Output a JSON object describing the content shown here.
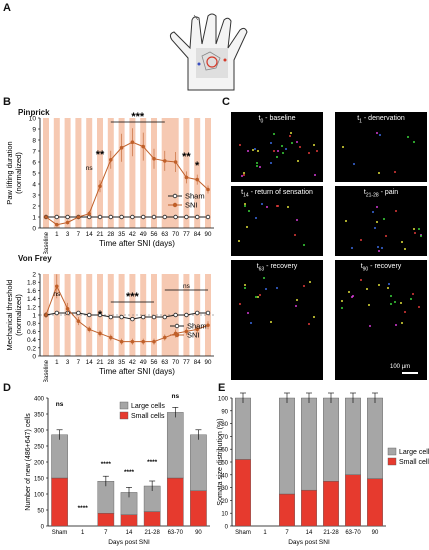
{
  "panels": {
    "A": "A",
    "B": "B",
    "C": "C",
    "D": "D",
    "E": "E"
  },
  "panelB": {
    "pinprick": {
      "title": "Pinprick",
      "ylabel": "Paw lifting duration (normalized)",
      "xlabel": "Time after SNI (days)",
      "legend": [
        "Sham",
        "SNI"
      ],
      "x_ticks": [
        "Baseline",
        "1",
        "3",
        "7",
        "14",
        "21",
        "28",
        "35",
        "42",
        "49",
        "56",
        "63",
        "70",
        "77",
        "84",
        "90"
      ],
      "ylim": [
        0,
        10
      ],
      "sig": [
        "ns",
        "**",
        "***",
        "**",
        "*"
      ]
    },
    "vonfrey": {
      "title": "Von Frey",
      "ylabel": "Mechanical threshold (normalized)",
      "xlabel": "Time after SNI (days)",
      "legend": [
        "Sham",
        "SNI"
      ],
      "x_ticks": [
        "Baseline",
        "1",
        "3",
        "7",
        "14",
        "21",
        "28",
        "35",
        "42",
        "49",
        "56",
        "63",
        "70",
        "77",
        "84",
        "90"
      ],
      "ylim": [
        0,
        2
      ],
      "sig": [
        "ns",
        "*",
        "***",
        "ns"
      ]
    }
  },
  "panelC": {
    "tiles": [
      {
        "prefix": "t",
        "sub": "0",
        "suffix": " - baseline"
      },
      {
        "prefix": "t",
        "sub": "1",
        "suffix": " - denervation"
      },
      {
        "prefix": "t",
        "sub": "14",
        "suffix": " - return of sensation"
      },
      {
        "prefix": "t",
        "sub": "21-28",
        "suffix": " - pain"
      },
      {
        "prefix": "t",
        "sub": "63",
        "suffix": " - recovery"
      },
      {
        "prefix": "t",
        "sub": "90",
        "suffix": " - recovery"
      }
    ],
    "scalebar": "100 µm"
  },
  "panelD": {
    "ylabel": "Number of new (486+647) cells",
    "xlabel": "Days post SNI",
    "legend": [
      "Large cells",
      "Small cells"
    ],
    "sig_top": [
      "ns",
      "****",
      "****",
      "****",
      "****",
      "ns"
    ]
  },
  "panelE": {
    "ylabel": "Somata size distribution (%)",
    "xlabel": "Days post SNI",
    "legend": [
      "Large cells",
      "Small cells"
    ]
  },
  "chart_data": [
    {
      "type": "line",
      "title": "Pinprick",
      "xlabel": "Time after SNI (days)",
      "ylabel": "Paw lifting duration (normalized)",
      "categories": [
        "Baseline",
        "1",
        "3",
        "7",
        "14",
        "21",
        "28",
        "35",
        "42",
        "49",
        "56",
        "63",
        "70",
        "77",
        "84",
        "90"
      ],
      "ylim": [
        0,
        10
      ],
      "series": [
        {
          "name": "Sham",
          "values": [
            1,
            1,
            1,
            1,
            1,
            1,
            1,
            1,
            1,
            1,
            1,
            1,
            1,
            1,
            1,
            1
          ]
        },
        {
          "name": "SNI",
          "values": [
            1,
            0.3,
            0.5,
            1,
            1.3,
            3.8,
            6.2,
            7.3,
            7.8,
            7.4,
            6.3,
            6.1,
            6,
            4.6,
            4.4,
            3.5
          ]
        }
      ],
      "legend": "right"
    },
    {
      "type": "line",
      "title": "Von Frey",
      "xlabel": "Time after SNI (days)",
      "ylabel": "Mechanical threshold (normalized)",
      "categories": [
        "Baseline",
        "1",
        "3",
        "7",
        "14",
        "21",
        "28",
        "35",
        "42",
        "49",
        "56",
        "63",
        "70",
        "77",
        "84",
        "90"
      ],
      "ylim": [
        0,
        2
      ],
      "series": [
        {
          "name": "Sham",
          "values": [
            1,
            1.05,
            1.05,
            1.05,
            1,
            1,
            0.95,
            0.95,
            0.9,
            0.95,
            0.95,
            0.95,
            1,
            1,
            1.05,
            1.05
          ]
        },
        {
          "name": "SNI",
          "values": [
            1,
            1.7,
            1.15,
            0.85,
            0.65,
            0.55,
            0.45,
            0.35,
            0.35,
            0.35,
            0.35,
            0.45,
            0.55,
            0.6,
            0.65,
            0.75
          ]
        }
      ],
      "legend": "right"
    },
    {
      "type": "bar",
      "xlabel": "Days post SNI",
      "ylabel": "Number of new (486+647) cells",
      "categories": [
        "Sham",
        "1",
        "7",
        "14",
        "21-28",
        "63-70",
        "90"
      ],
      "ylim": [
        0,
        400
      ],
      "series": [
        {
          "name": "Small cells",
          "values": [
            150,
            0,
            40,
            35,
            45,
            150,
            110
          ]
        },
        {
          "name": "Large cells",
          "values": [
            135,
            0,
            100,
            70,
            80,
            205,
            175
          ]
        }
      ]
    },
    {
      "type": "bar",
      "xlabel": "Days post SNI",
      "ylabel": "Somata size distribution (%)",
      "categories": [
        "Sham",
        "1",
        "7",
        "14",
        "21-28",
        "63-70",
        "90"
      ],
      "ylim": [
        0,
        100
      ],
      "series": [
        {
          "name": "Small cells",
          "values": [
            52,
            0,
            25,
            28,
            35,
            40,
            37
          ]
        },
        {
          "name": "Large cells",
          "values": [
            48,
            0,
            75,
            72,
            65,
            60,
            63
          ]
        }
      ]
    }
  ],
  "colors": {
    "sni": "#c0602a",
    "sham": "#222222",
    "shade": "#f6c9b2",
    "small": "#e63a2e",
    "large": "#a6a6a6"
  }
}
